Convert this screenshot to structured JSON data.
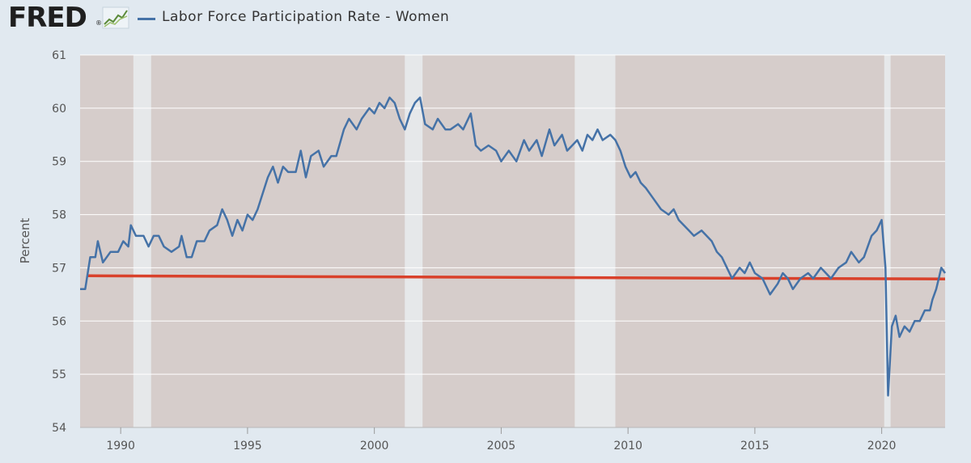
{
  "app": {
    "logo_text": "FRED",
    "logo_mark": "®",
    "logo_icon": "line-chart-icon"
  },
  "chart_data": {
    "type": "line",
    "title": "",
    "legend": [
      "Labor Force Participation Rate - Women"
    ],
    "xlabel": "",
    "ylabel": "Percent",
    "xlim": [
      1988.4,
      2022.5
    ],
    "ylim": [
      54,
      61
    ],
    "x_ticks": [
      1990,
      1995,
      2000,
      2005,
      2010,
      2015,
      2020
    ],
    "y_ticks": [
      54,
      55,
      56,
      57,
      58,
      59,
      60,
      61
    ],
    "recessions": [
      [
        1990.5,
        1991.2
      ],
      [
        2001.2,
        2001.9
      ],
      [
        2007.9,
        2009.5
      ],
      [
        2020.1,
        2020.35
      ]
    ],
    "series": [
      {
        "name": "Labor Force Participation Rate - Women",
        "color": "#4572a7",
        "points": [
          [
            1988.4,
            56.6
          ],
          [
            1988.6,
            56.6
          ],
          [
            1988.8,
            57.2
          ],
          [
            1989.0,
            57.2
          ],
          [
            1989.1,
            57.5
          ],
          [
            1989.3,
            57.1
          ],
          [
            1989.6,
            57.3
          ],
          [
            1989.9,
            57.3
          ],
          [
            1990.1,
            57.5
          ],
          [
            1990.3,
            57.4
          ],
          [
            1990.4,
            57.8
          ],
          [
            1990.6,
            57.6
          ],
          [
            1990.9,
            57.6
          ],
          [
            1991.1,
            57.4
          ],
          [
            1991.3,
            57.6
          ],
          [
            1991.5,
            57.6
          ],
          [
            1991.7,
            57.4
          ],
          [
            1992.0,
            57.3
          ],
          [
            1992.3,
            57.4
          ],
          [
            1992.4,
            57.6
          ],
          [
            1992.6,
            57.2
          ],
          [
            1992.8,
            57.2
          ],
          [
            1993.0,
            57.5
          ],
          [
            1993.3,
            57.5
          ],
          [
            1993.5,
            57.7
          ],
          [
            1993.8,
            57.8
          ],
          [
            1994.0,
            58.1
          ],
          [
            1994.2,
            57.9
          ],
          [
            1994.4,
            57.6
          ],
          [
            1994.6,
            57.9
          ],
          [
            1994.8,
            57.7
          ],
          [
            1995.0,
            58.0
          ],
          [
            1995.2,
            57.9
          ],
          [
            1995.4,
            58.1
          ],
          [
            1995.6,
            58.4
          ],
          [
            1995.8,
            58.7
          ],
          [
            1996.0,
            58.9
          ],
          [
            1996.2,
            58.6
          ],
          [
            1996.4,
            58.9
          ],
          [
            1996.6,
            58.8
          ],
          [
            1996.9,
            58.8
          ],
          [
            1997.1,
            59.2
          ],
          [
            1997.3,
            58.7
          ],
          [
            1997.5,
            59.1
          ],
          [
            1997.8,
            59.2
          ],
          [
            1998.0,
            58.9
          ],
          [
            1998.3,
            59.1
          ],
          [
            1998.5,
            59.1
          ],
          [
            1998.8,
            59.6
          ],
          [
            1999.0,
            59.8
          ],
          [
            1999.3,
            59.6
          ],
          [
            1999.5,
            59.8
          ],
          [
            1999.8,
            60.0
          ],
          [
            2000.0,
            59.9
          ],
          [
            2000.2,
            60.1
          ],
          [
            2000.4,
            60.0
          ],
          [
            2000.6,
            60.2
          ],
          [
            2000.8,
            60.1
          ],
          [
            2001.0,
            59.8
          ],
          [
            2001.2,
            59.6
          ],
          [
            2001.4,
            59.9
          ],
          [
            2001.6,
            60.1
          ],
          [
            2001.8,
            60.2
          ],
          [
            2002.0,
            59.7
          ],
          [
            2002.3,
            59.6
          ],
          [
            2002.5,
            59.8
          ],
          [
            2002.8,
            59.6
          ],
          [
            2003.0,
            59.6
          ],
          [
            2003.3,
            59.7
          ],
          [
            2003.5,
            59.6
          ],
          [
            2003.8,
            59.9
          ],
          [
            2004.0,
            59.3
          ],
          [
            2004.2,
            59.2
          ],
          [
            2004.5,
            59.3
          ],
          [
            2004.8,
            59.2
          ],
          [
            2005.0,
            59.0
          ],
          [
            2005.3,
            59.2
          ],
          [
            2005.6,
            59.0
          ],
          [
            2005.9,
            59.4
          ],
          [
            2006.1,
            59.2
          ],
          [
            2006.4,
            59.4
          ],
          [
            2006.6,
            59.1
          ],
          [
            2006.9,
            59.6
          ],
          [
            2007.1,
            59.3
          ],
          [
            2007.4,
            59.5
          ],
          [
            2007.6,
            59.2
          ],
          [
            2007.8,
            59.3
          ],
          [
            2008.0,
            59.4
          ],
          [
            2008.2,
            59.2
          ],
          [
            2008.4,
            59.5
          ],
          [
            2008.6,
            59.4
          ],
          [
            2008.8,
            59.6
          ],
          [
            2009.0,
            59.4
          ],
          [
            2009.3,
            59.5
          ],
          [
            2009.5,
            59.4
          ],
          [
            2009.7,
            59.2
          ],
          [
            2009.9,
            58.9
          ],
          [
            2010.1,
            58.7
          ],
          [
            2010.3,
            58.8
          ],
          [
            2010.5,
            58.6
          ],
          [
            2010.7,
            58.5
          ],
          [
            2011.0,
            58.3
          ],
          [
            2011.3,
            58.1
          ],
          [
            2011.6,
            58.0
          ],
          [
            2011.8,
            58.1
          ],
          [
            2012.0,
            57.9
          ],
          [
            2012.2,
            57.8
          ],
          [
            2012.4,
            57.7
          ],
          [
            2012.6,
            57.6
          ],
          [
            2012.9,
            57.7
          ],
          [
            2013.1,
            57.6
          ],
          [
            2013.3,
            57.5
          ],
          [
            2013.5,
            57.3
          ],
          [
            2013.7,
            57.2
          ],
          [
            2013.9,
            57.0
          ],
          [
            2014.1,
            56.8
          ],
          [
            2014.4,
            57.0
          ],
          [
            2014.6,
            56.9
          ],
          [
            2014.8,
            57.1
          ],
          [
            2015.0,
            56.9
          ],
          [
            2015.3,
            56.8
          ],
          [
            2015.6,
            56.5
          ],
          [
            2015.9,
            56.7
          ],
          [
            2016.1,
            56.9
          ],
          [
            2016.3,
            56.8
          ],
          [
            2016.5,
            56.6
          ],
          [
            2016.8,
            56.8
          ],
          [
            2017.1,
            56.9
          ],
          [
            2017.3,
            56.8
          ],
          [
            2017.6,
            57.0
          ],
          [
            2017.8,
            56.9
          ],
          [
            2018.0,
            56.8
          ],
          [
            2018.3,
            57.0
          ],
          [
            2018.6,
            57.1
          ],
          [
            2018.8,
            57.3
          ],
          [
            2019.1,
            57.1
          ],
          [
            2019.3,
            57.2
          ],
          [
            2019.6,
            57.6
          ],
          [
            2019.8,
            57.7
          ],
          [
            2020.0,
            57.9
          ],
          [
            2020.15,
            57.0
          ],
          [
            2020.25,
            54.6
          ],
          [
            2020.4,
            55.9
          ],
          [
            2020.55,
            56.1
          ],
          [
            2020.7,
            55.7
          ],
          [
            2020.9,
            55.9
          ],
          [
            2021.1,
            55.8
          ],
          [
            2021.3,
            56.0
          ],
          [
            2021.5,
            56.0
          ],
          [
            2021.7,
            56.2
          ],
          [
            2021.9,
            56.2
          ],
          [
            2022.0,
            56.4
          ],
          [
            2022.15,
            56.6
          ],
          [
            2022.25,
            56.8
          ],
          [
            2022.35,
            57.0
          ],
          [
            2022.5,
            56.9
          ]
        ]
      }
    ],
    "overlay": {
      "type": "hline",
      "color": "#d9412b",
      "x": [
        1988.7,
        2022.5
      ],
      "y": [
        56.85,
        56.79
      ]
    }
  }
}
